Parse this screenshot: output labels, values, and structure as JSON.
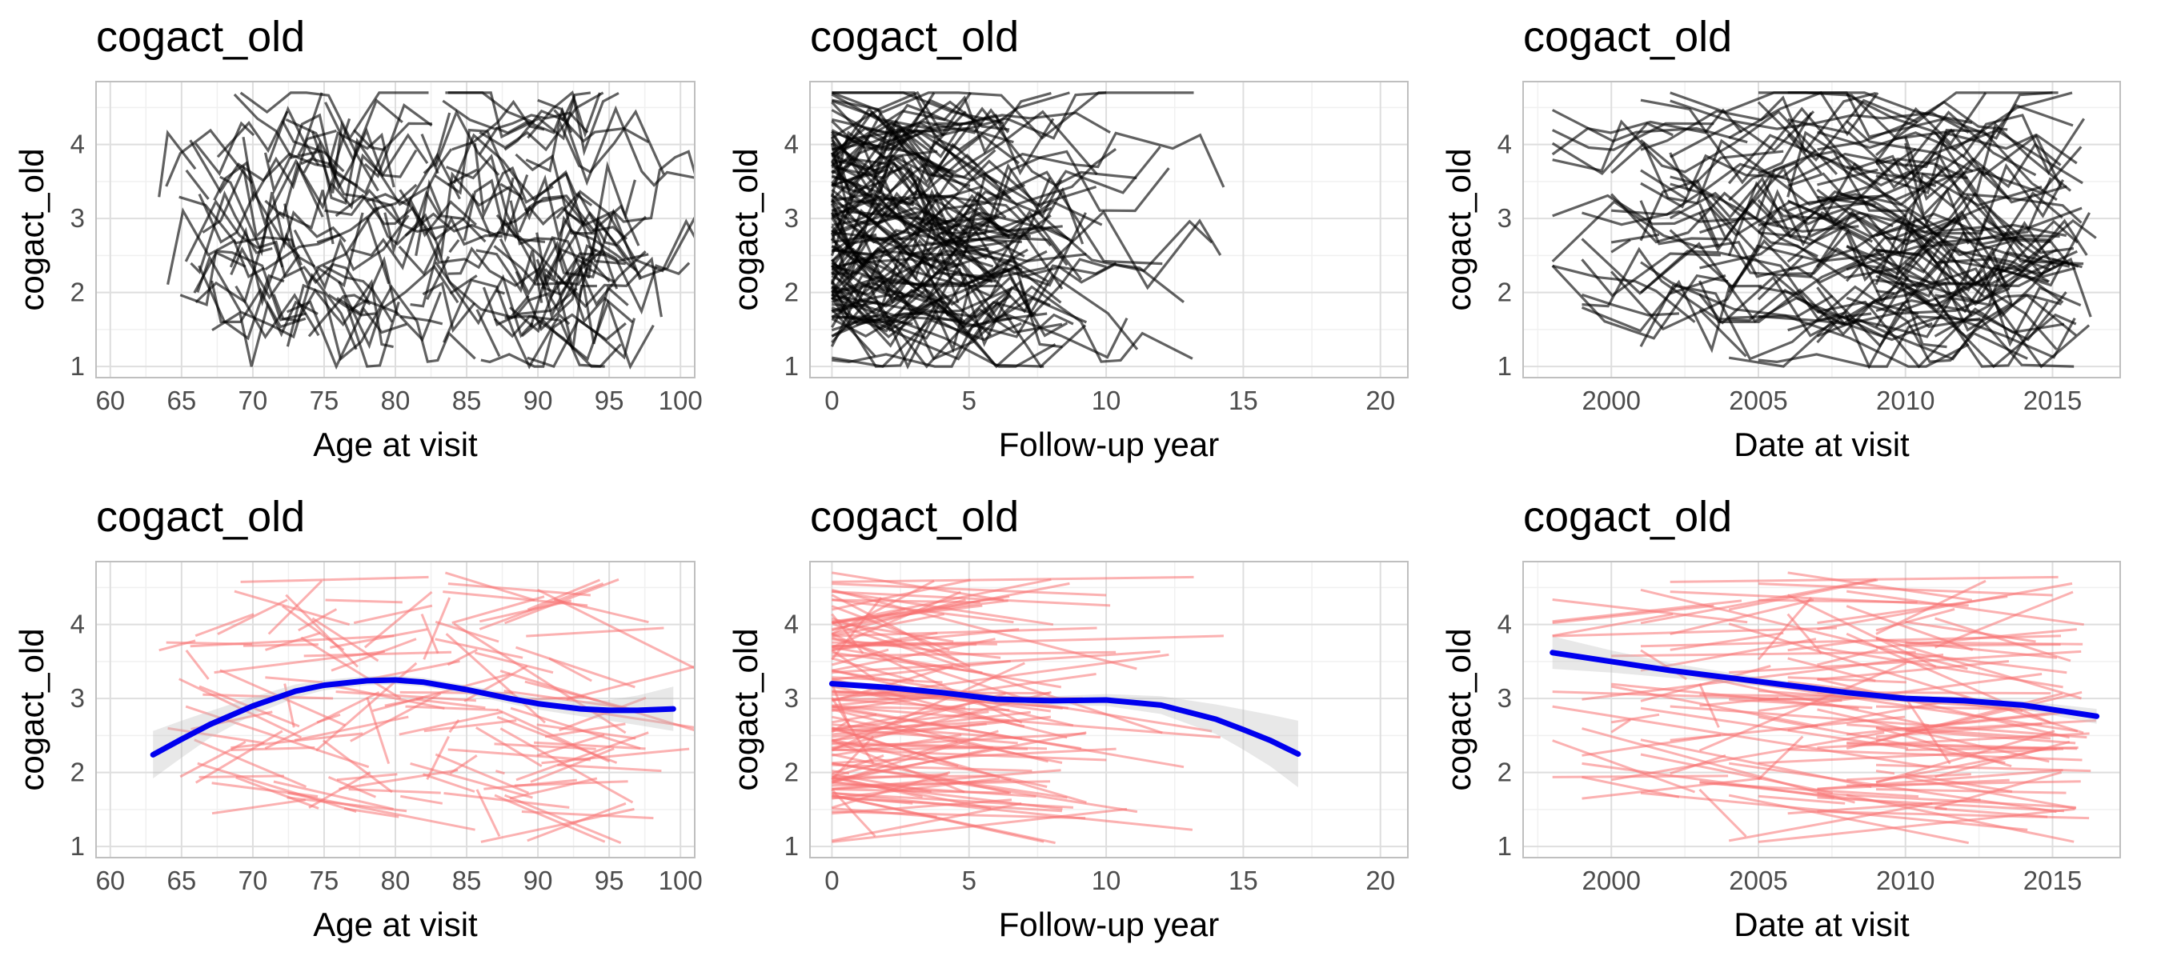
{
  "chart_data": [
    {
      "type": "line",
      "title": "cogact_old",
      "xlabel": "Age at visit",
      "ylabel": "cogact_old",
      "xlim": [
        59,
        101
      ],
      "ylim": [
        0.85,
        4.85
      ],
      "xticks": [
        "60",
        "65",
        "70",
        "75",
        "80",
        "85",
        "90",
        "95",
        "100"
      ],
      "yticks": [
        "1",
        "2",
        "3",
        "4"
      ],
      "grid": true,
      "legend": "none",
      "line_color": "#000000",
      "series_description": "many individual subject trajectories (spaghetti lines)"
    },
    {
      "type": "line",
      "title": "cogact_old",
      "xlabel": "Follow-up year",
      "ylabel": "cogact_old",
      "xlim": [
        -0.8,
        21
      ],
      "ylim": [
        0.85,
        4.85
      ],
      "xticks": [
        "0",
        "5",
        "10",
        "15",
        "20"
      ],
      "yticks": [
        "1",
        "2",
        "3",
        "4"
      ],
      "grid": true,
      "legend": "none",
      "line_color": "#000000"
    },
    {
      "type": "line",
      "title": "cogact_old",
      "xlabel": "Date at visit",
      "ylabel": "cogact_old",
      "xlim": [
        1997,
        2017.3
      ],
      "ylim": [
        0.85,
        4.85
      ],
      "xticks": [
        "2000",
        "2005",
        "2010",
        "2015"
      ],
      "yticks": [
        "1",
        "2",
        "3",
        "4"
      ],
      "grid": true,
      "legend": "none",
      "line_color": "#000000"
    },
    {
      "type": "line",
      "title": "cogact_old",
      "xlabel": "Age at visit",
      "ylabel": "cogact_old",
      "xlim": [
        59,
        101
      ],
      "ylim": [
        0.85,
        4.85
      ],
      "xticks": [
        "60",
        "65",
        "70",
        "75",
        "80",
        "85",
        "90",
        "95",
        "100"
      ],
      "yticks": [
        "1",
        "2",
        "3",
        "4"
      ],
      "grid": true,
      "legend": "none",
      "line_color": "#f87171",
      "smooth_color": "#0000ee",
      "smooth": {
        "x": [
          63,
          65,
          67,
          70,
          73,
          75,
          78,
          80,
          82,
          85,
          88,
          90,
          93,
          95,
          97,
          99.5
        ],
        "y": [
          2.24,
          2.45,
          2.65,
          2.9,
          3.1,
          3.18,
          3.24,
          3.25,
          3.22,
          3.12,
          3.0,
          2.93,
          2.86,
          2.84,
          2.84,
          2.86
        ],
        "band": [
          0.32,
          0.25,
          0.18,
          0.12,
          0.09,
          0.07,
          0.06,
          0.06,
          0.06,
          0.06,
          0.07,
          0.08,
          0.1,
          0.14,
          0.2,
          0.3
        ]
      }
    },
    {
      "type": "line",
      "title": "cogact_old",
      "xlabel": "Follow-up year",
      "ylabel": "cogact_old",
      "xlim": [
        -0.8,
        21
      ],
      "ylim": [
        0.85,
        4.85
      ],
      "xticks": [
        "0",
        "5",
        "10",
        "15",
        "20"
      ],
      "yticks": [
        "1",
        "2",
        "3",
        "4"
      ],
      "grid": true,
      "legend": "none",
      "line_color": "#f87171",
      "smooth_color": "#0000ee",
      "smooth": {
        "x": [
          0,
          2,
          4,
          6,
          8,
          10,
          12,
          14,
          15,
          16,
          17
        ],
        "y": [
          3.2,
          3.15,
          3.08,
          2.99,
          2.97,
          2.98,
          2.91,
          2.72,
          2.58,
          2.43,
          2.25
        ],
        "band": [
          0.05,
          0.04,
          0.04,
          0.05,
          0.06,
          0.08,
          0.12,
          0.2,
          0.27,
          0.35,
          0.45
        ]
      }
    },
    {
      "type": "line",
      "title": "cogact_old",
      "xlabel": "Date at visit",
      "ylabel": "cogact_old",
      "xlim": [
        1997,
        2017.3
      ],
      "ylim": [
        0.85,
        4.85
      ],
      "xticks": [
        "2000",
        "2005",
        "2010",
        "2015"
      ],
      "yticks": [
        "1",
        "2",
        "3",
        "4"
      ],
      "grid": true,
      "legend": "none",
      "line_color": "#f87171",
      "smooth_color": "#0000ee",
      "smooth": {
        "x": [
          1998,
          2000,
          2002,
          2004,
          2006,
          2008,
          2010,
          2012,
          2014,
          2016.5
        ],
        "y": [
          3.62,
          3.5,
          3.38,
          3.28,
          3.18,
          3.08,
          3.0,
          2.97,
          2.91,
          2.76
        ],
        "band": [
          0.22,
          0.15,
          0.1,
          0.07,
          0.05,
          0.05,
          0.05,
          0.05,
          0.06,
          0.1
        ]
      }
    }
  ]
}
